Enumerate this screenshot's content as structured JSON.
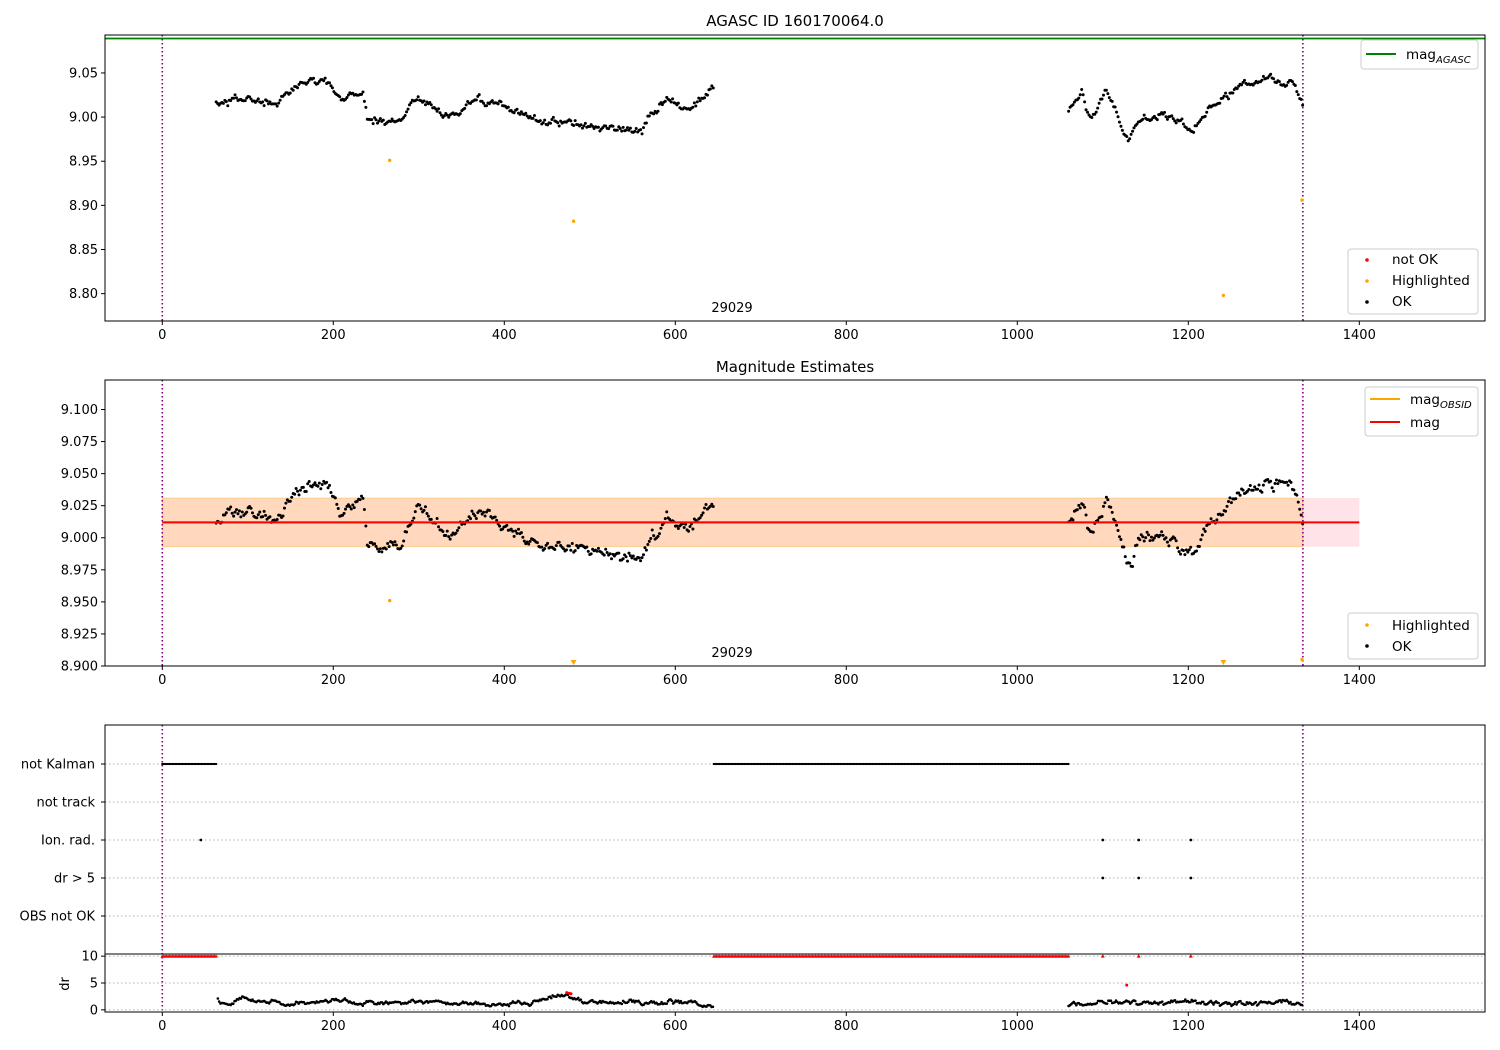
{
  "chart_data": [
    {
      "type": "scatter",
      "title": "AGASC ID 160170064.0",
      "xlim": [
        -67,
        1547
      ],
      "ylim": [
        8.769,
        9.093
      ],
      "xticks": [
        0,
        200,
        400,
        600,
        800,
        1000,
        1200,
        1400
      ],
      "xtick_labels": [
        "0",
        "200",
        "400",
        "600",
        "800",
        "1000",
        "1200",
        "1400"
      ],
      "yticks": [
        8.8,
        8.85,
        8.9,
        8.95,
        9.0,
        9.05
      ],
      "ytick_labels": [
        "8.80",
        "8.85",
        "8.90",
        "8.95",
        "9.00",
        "9.05"
      ],
      "vlines": [
        0,
        1334
      ],
      "hlines": [
        {
          "name": "mag_AGASC",
          "y": 9.089,
          "color": "#008000"
        }
      ],
      "legend_lines": {
        "main": "mag",
        "sub": "AGASC"
      },
      "legend_points": [
        "not OK",
        "Highlighted",
        "OK"
      ],
      "annotation": {
        "text": "29029",
        "x": 666
      },
      "segments": [
        {
          "x0": 63,
          "x1": 645,
          "anchors": [
            [
              63,
              9.015
            ],
            [
              100,
              9.022
            ],
            [
              130,
              9.012
            ],
            [
              165,
              9.04
            ],
            [
              190,
              9.045
            ],
            [
              210,
              9.02
            ],
            [
              235,
              9.03
            ],
            [
              240,
              8.995
            ],
            [
              280,
              8.997
            ],
            [
              300,
              9.025
            ],
            [
              330,
              9.0
            ],
            [
              370,
              9.02
            ],
            [
              400,
              9.01
            ],
            [
              450,
              8.995
            ],
            [
              500,
              8.99
            ],
            [
              560,
              8.985
            ],
            [
              590,
              9.02
            ],
            [
              615,
              9.005
            ],
            [
              645,
              9.03
            ]
          ]
        },
        {
          "x0": 1060,
          "x1": 1334,
          "anchors": [
            [
              1060,
              9.01
            ],
            [
              1075,
              9.03
            ],
            [
              1085,
              9.0
            ],
            [
              1105,
              9.03
            ],
            [
              1115,
              9.01
            ],
            [
              1130,
              8.975
            ],
            [
              1145,
              9.0
            ],
            [
              1175,
              9.0
            ],
            [
              1205,
              8.985
            ],
            [
              1225,
              9.01
            ],
            [
              1260,
              9.035
            ],
            [
              1295,
              9.045
            ],
            [
              1320,
              9.04
            ],
            [
              1334,
              9.015
            ]
          ]
        }
      ],
      "highlighted": [
        [
          266,
          8.951
        ],
        [
          481,
          8.882
        ],
        [
          1241,
          8.798
        ],
        [
          1333,
          8.906
        ]
      ]
    },
    {
      "type": "scatter",
      "title": "Magnitude Estimates",
      "xlim": [
        -67,
        1547
      ],
      "ylim": [
        8.9,
        9.123
      ],
      "xticks": [
        0,
        200,
        400,
        600,
        800,
        1000,
        1200,
        1400
      ],
      "xtick_labels": [
        "0",
        "200",
        "400",
        "600",
        "800",
        "1000",
        "1200",
        "1400"
      ],
      "yticks": [
        8.9,
        8.925,
        8.95,
        8.975,
        9.0,
        9.025,
        9.05,
        9.075,
        9.1
      ],
      "ytick_labels": [
        "8.900",
        "8.925",
        "8.950",
        "8.975",
        "9.000",
        "9.025",
        "9.050",
        "9.075",
        "9.100"
      ],
      "vlines": [
        0,
        1334
      ],
      "mag": 9.012,
      "band": [
        8.993,
        9.031
      ],
      "band_x": [
        0,
        1400
      ],
      "obsid_band_x": [
        0,
        1334
      ],
      "legend_lines": [
        {
          "main": "mag",
          "sub": "OBSID",
          "color": "#ffa500"
        },
        {
          "main": "mag",
          "sub": "",
          "color": "#ff0000"
        }
      ],
      "legend_points": [
        "Highlighted",
        "OK"
      ],
      "annotation": {
        "text": "29029",
        "x": 666
      },
      "highlighted": [
        [
          266,
          8.951
        ],
        [
          1333,
          8.905
        ]
      ],
      "clipped_markers": [
        481,
        1241
      ]
    },
    {
      "type": "scatter",
      "title": "",
      "xlim": [
        -67,
        1547
      ],
      "categories": [
        "not Kalman",
        "not track",
        "Ion. rad.",
        "dr > 5",
        "OBS not OK"
      ],
      "vlines": [
        0,
        1334
      ],
      "flags": {
        "not Kalman": {
          "ranges": [
            [
              0,
              63
            ],
            [
              645,
              1060
            ]
          ],
          "points": []
        },
        "not track": {
          "ranges": [],
          "points": []
        },
        "Ion. rad.": {
          "ranges": [],
          "points": [
            45,
            1100,
            1142,
            1203
          ]
        },
        "dr > 5": {
          "ranges": [],
          "points": [
            1100,
            1142,
            1203
          ]
        },
        "OBS not OK": {
          "ranges": [],
          "points": []
        }
      }
    },
    {
      "type": "scatter",
      "title": "",
      "ylabel": "dr",
      "xlim": [
        -67,
        1547
      ],
      "ylim": [
        -0.4,
        10.4
      ],
      "xticks": [
        0,
        200,
        400,
        600,
        800,
        1000,
        1200,
        1400
      ],
      "xtick_labels": [
        "0",
        "200",
        "400",
        "600",
        "800",
        "1000",
        "1200",
        "1400"
      ],
      "yticks": [
        0,
        5,
        10
      ],
      "ytick_labels": [
        "0",
        "5",
        "10"
      ],
      "vlines": [
        0,
        1334
      ],
      "clipped_ranges": [
        [
          0,
          63
        ],
        [
          645,
          1060
        ]
      ],
      "clipped_points": [
        1100,
        1142,
        1203
      ],
      "red_points": [
        [
          473,
          3.2
        ],
        [
          476,
          3.1
        ],
        [
          478,
          3.0
        ],
        [
          1128,
          4.6
        ]
      ],
      "segments": [
        {
          "x0": 65,
          "x1": 645,
          "anchors": [
            [
              65,
              1.8
            ],
            [
              80,
              0.8
            ],
            [
              90,
              2.3
            ],
            [
              120,
              1.5
            ],
            [
              150,
              1.2
            ],
            [
              200,
              1.8
            ],
            [
              230,
              1.0
            ],
            [
              260,
              1.2
            ],
            [
              300,
              1.6
            ],
            [
              340,
              1.2
            ],
            [
              380,
              1.0
            ],
            [
              420,
              1.2
            ],
            [
              450,
              2.0
            ],
            [
              470,
              2.8
            ],
            [
              490,
              1.4
            ],
            [
              540,
              1.5
            ],
            [
              580,
              1.2
            ],
            [
              600,
              1.6
            ],
            [
              645,
              0.8
            ]
          ]
        },
        {
          "x0": 1060,
          "x1": 1334,
          "anchors": [
            [
              1060,
              1.2
            ],
            [
              1080,
              0.8
            ],
            [
              1100,
              1.6
            ],
            [
              1150,
              1.3
            ],
            [
              1200,
              1.5
            ],
            [
              1240,
              1.2
            ],
            [
              1280,
              1.0
            ],
            [
              1310,
              1.5
            ],
            [
              1334,
              1.0
            ]
          ]
        }
      ]
    }
  ]
}
